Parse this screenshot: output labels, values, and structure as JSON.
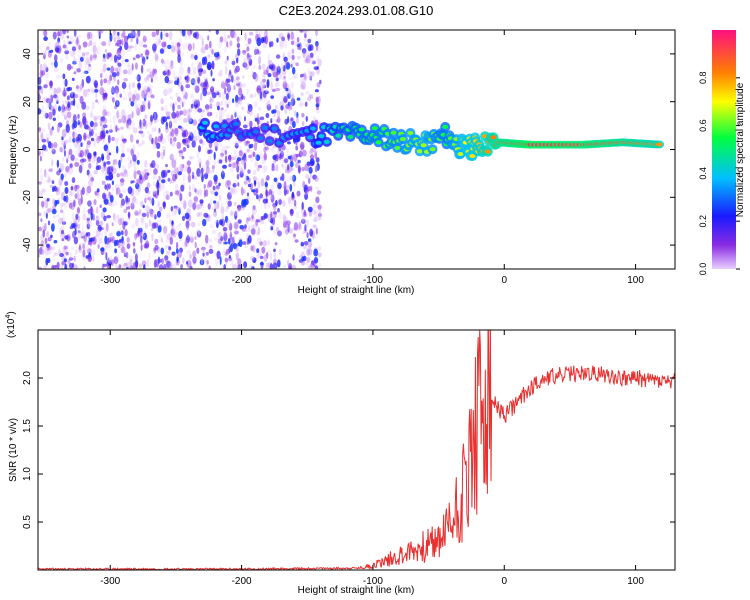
{
  "title": "C2E3.2024.293.01.08.G10",
  "colors": {
    "snr_line": "#e83030",
    "axis": "#000000"
  },
  "colorbar": {
    "label": "Normalized spectral amplitude",
    "ticks": [
      "0.0",
      "0.2",
      "0.4",
      "0.6",
      "0.8"
    ],
    "tick_values": [
      0.0,
      0.2,
      0.4,
      0.6,
      0.8
    ]
  },
  "chart_data": [
    {
      "type": "heatmap",
      "title": "C2E3.2024.293.01.08.G10",
      "xlabel": "Height of straight line (km)",
      "ylabel": "Frequency (Hz)",
      "xlim": [
        -355,
        130
      ],
      "ylim": [
        -50,
        50
      ],
      "x_ticks": [
        -300,
        -200,
        -100,
        0,
        100
      ],
      "x_tick_labels": [
        "-300",
        "-200",
        "-100",
        "0",
        "100"
      ],
      "y_ticks": [
        -40,
        -20,
        0,
        20,
        40
      ],
      "y_tick_labels": [
        "-40",
        "-20",
        "0",
        "20",
        "40"
      ],
      "colorbar_range": [
        0,
        1
      ],
      "signal_band": [
        {
          "x": -230,
          "f": 8,
          "amp": 0.4
        },
        {
          "x": -200,
          "f": 7,
          "amp": 0.3
        },
        {
          "x": -150,
          "f": 6,
          "amp": 0.35
        },
        {
          "x": -120,
          "f": 7,
          "amp": 0.5
        },
        {
          "x": -100,
          "f": 6,
          "amp": 0.55
        },
        {
          "x": -80,
          "f": 4,
          "amp": 0.6
        },
        {
          "x": -60,
          "f": 2,
          "amp": 0.65
        },
        {
          "x": -45,
          "f": 6,
          "amp": 0.55
        },
        {
          "x": -30,
          "f": 0,
          "amp": 0.7
        },
        {
          "x": -20,
          "f": 2,
          "amp": 0.75
        },
        {
          "x": -5,
          "f": 3,
          "amp": 0.85
        },
        {
          "x": 20,
          "f": 2,
          "amp": 0.95
        },
        {
          "x": 60,
          "f": 2,
          "amp": 0.9
        },
        {
          "x": 90,
          "f": 3,
          "amp": 0.85
        },
        {
          "x": 120,
          "f": 2,
          "amp": 0.8
        }
      ]
    },
    {
      "type": "line",
      "xlabel": "Height of straight line (km)",
      "ylabel": "SNR (10 * v/v)",
      "y_multiplier": "(x10",
      "y_multiplier_exp": "4",
      "y_multiplier_close": ")",
      "xlim": [
        -355,
        130
      ],
      "ylim": [
        0,
        2.5
      ],
      "x_ticks": [
        -300,
        -200,
        -100,
        0,
        100
      ],
      "x_tick_labels": [
        "-300",
        "-200",
        "-100",
        "0",
        "100"
      ],
      "y_ticks": [
        0.5,
        1.0,
        1.5,
        2.0
      ],
      "y_tick_labels": [
        "0.5",
        "1.0",
        "1.5",
        "2.0"
      ],
      "series": [
        {
          "x": [
            -355,
            -300,
            -200,
            -110,
            -100,
            -90,
            -80,
            -70,
            -60,
            -50,
            -45,
            -40,
            -35,
            -30,
            -25,
            -20,
            -15,
            -10,
            -5,
            0,
            10,
            20,
            30,
            40,
            50,
            60,
            70,
            80,
            90,
            100,
            110,
            120,
            130
          ],
          "y": [
            0.01,
            0.01,
            0.01,
            0.02,
            0.05,
            0.1,
            0.15,
            0.2,
            0.25,
            0.3,
            0.4,
            0.5,
            0.7,
            0.9,
            1.2,
            1.5,
            1.65,
            1.75,
            1.7,
            1.6,
            1.75,
            1.9,
            2.0,
            2.02,
            2.04,
            2.05,
            2.04,
            2.03,
            2.0,
            2.0,
            1.98,
            1.97,
            1.95
          ]
        }
      ]
    }
  ]
}
